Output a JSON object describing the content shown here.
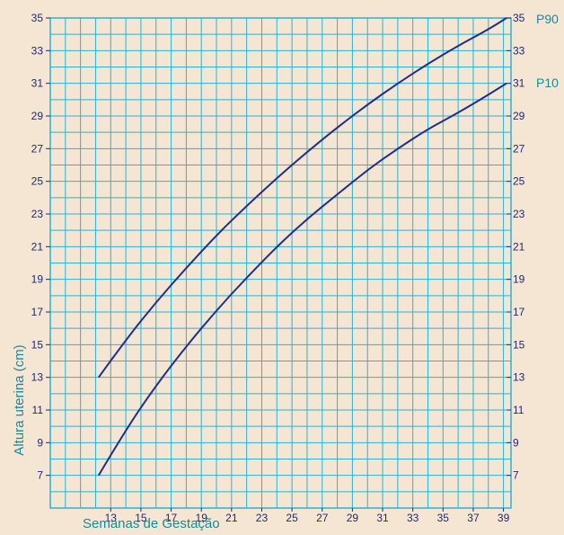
{
  "chart_data": {
    "type": "line",
    "xlabel": "Semanas de Gestação",
    "ylabel": "Altura uterina (cm)",
    "xlim": [
      9,
      39.5
    ],
    "ylim": [
      5,
      35
    ],
    "x_ticks": [
      13,
      15,
      17,
      19,
      21,
      23,
      25,
      27,
      29,
      31,
      33,
      35,
      37,
      39
    ],
    "y_ticks": [
      7,
      9,
      11,
      13,
      15,
      17,
      19,
      21,
      23,
      25,
      27,
      29,
      31,
      33,
      35
    ],
    "series": [
      {
        "name": "P90",
        "x": [
          12.2,
          14,
          16,
          18,
          20,
          22,
          24,
          26,
          28,
          30,
          32,
          34,
          36,
          38,
          39.2
        ],
        "y": [
          13,
          15.3,
          17.6,
          19.7,
          21.7,
          23.5,
          25.2,
          26.8,
          28.3,
          29.7,
          31,
          32.2,
          33.3,
          34.3,
          35
        ]
      },
      {
        "name": "P10",
        "x": [
          12.2,
          14,
          16,
          18,
          20,
          22,
          24,
          26,
          28,
          30,
          32,
          34,
          36,
          38,
          39.2
        ],
        "y": [
          7,
          9.8,
          12.5,
          14.9,
          17.1,
          19.1,
          21,
          22.7,
          24.2,
          25.7,
          27,
          28.2,
          29.2,
          30.3,
          31
        ]
      }
    ],
    "grid": true,
    "colors": {
      "background": "#f5e6d3",
      "grid": "#29b3d6",
      "line": "#1f2f8a",
      "label": "#178a9a",
      "tick": "#1f2a6b"
    }
  }
}
